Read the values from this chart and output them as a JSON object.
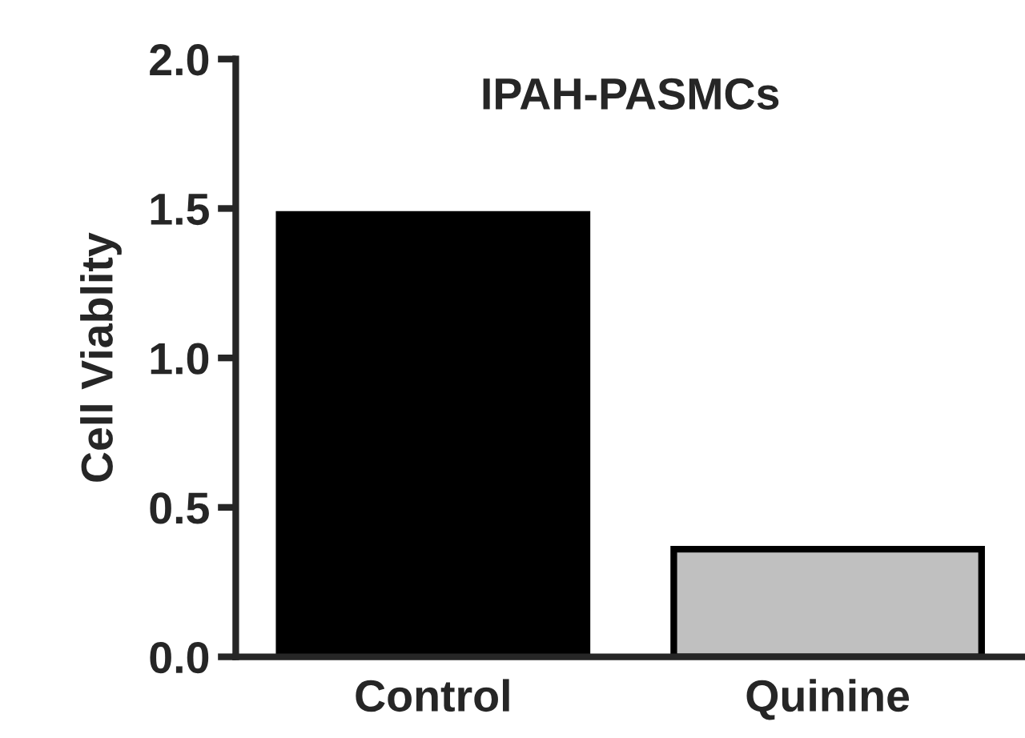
{
  "chart_data": {
    "type": "bar",
    "title": "IPAH-PASMCs",
    "ylabel": "Cell Viablity",
    "categories": [
      "Control",
      "Quinine"
    ],
    "values": [
      1.48,
      0.36
    ],
    "colors": [
      "#000000",
      "#c0c0c0"
    ],
    "ylim": [
      0,
      2.0
    ],
    "yticks": [
      {
        "value": 0,
        "label": "0.0"
      },
      {
        "value": 0.5,
        "label": "0.5"
      },
      {
        "value": 1.0,
        "label": "1.0"
      },
      {
        "value": 1.5,
        "label": "1.5"
      },
      {
        "value": 2.0,
        "label": "2.0"
      }
    ],
    "grid": false,
    "legend": false
  }
}
